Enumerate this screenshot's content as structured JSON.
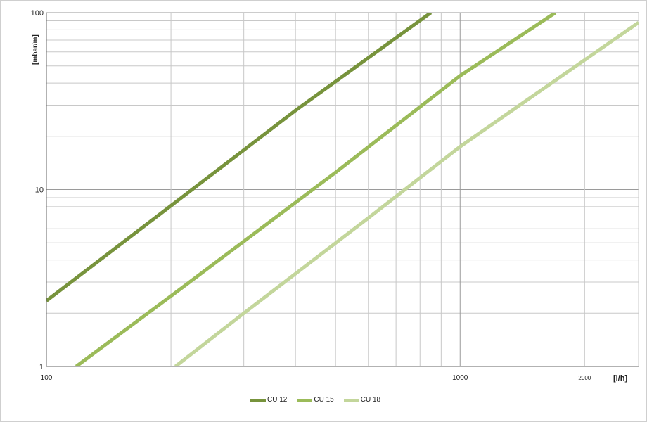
{
  "chart_data": {
    "type": "line",
    "title": "",
    "xlabel": "[l/h]",
    "ylabel": "[mbar/m]",
    "x_scale": "log",
    "y_scale": "log",
    "xlim": [
      100,
      2700
    ],
    "ylim": [
      1,
      100
    ],
    "x_tick_labels": [
      {
        "value": 100,
        "label": "100"
      },
      {
        "value": 1000,
        "label": "1000"
      },
      {
        "value": 2000,
        "label": "2000"
      }
    ],
    "y_tick_labels": [
      {
        "value": 1,
        "label": "1"
      },
      {
        "value": 10,
        "label": "10"
      },
      {
        "value": 100,
        "label": "100"
      }
    ],
    "x_gridlines": [
      100,
      200,
      300,
      400,
      500,
      600,
      700,
      800,
      900,
      1000,
      2000
    ],
    "y_gridlines": [
      1,
      2,
      3,
      4,
      5,
      6,
      7,
      8,
      9,
      10,
      20,
      30,
      40,
      50,
      60,
      70,
      80,
      90,
      100
    ],
    "grid": true,
    "legend_position": "bottom",
    "series": [
      {
        "name": "CU 12",
        "color": "#77933c",
        "x": [
          100,
          200,
          400,
          850
        ],
        "y": [
          2.35,
          8.1,
          28,
          100
        ]
      },
      {
        "name": "CU 15",
        "color": "#9bbb59",
        "x": [
          118,
          200,
          500,
          1000,
          1700
        ],
        "y": [
          1,
          2.5,
          12.5,
          44,
          100
        ]
      },
      {
        "name": "CU 18",
        "color": "#c3d69b",
        "x": [
          205,
          300,
          600,
          1000,
          2700
        ],
        "y": [
          1,
          2,
          6.9,
          17.5,
          88
        ]
      }
    ]
  }
}
